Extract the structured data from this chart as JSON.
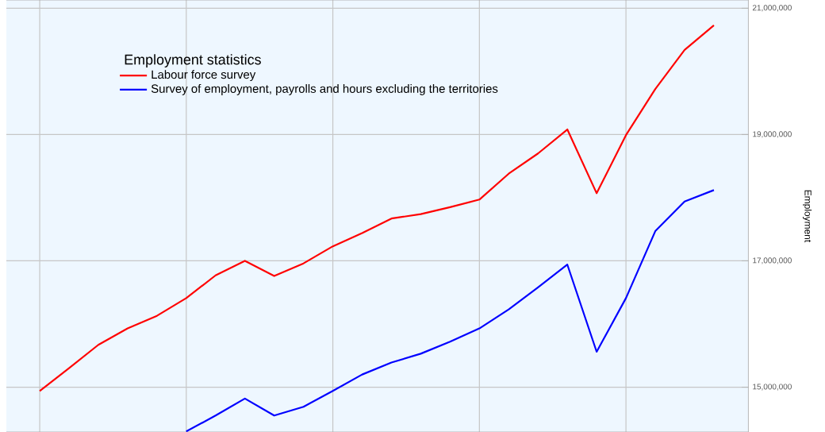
{
  "chart_data": {
    "type": "line",
    "legend_title": "Employment statistics",
    "ylabel": "Employment",
    "categories": [
      null,
      null,
      null,
      null,
      null,
      null,
      null,
      null,
      null,
      null,
      null,
      null,
      null,
      null,
      null,
      null,
      null,
      null,
      null,
      null,
      null,
      null,
      null,
      null
    ],
    "series": [
      {
        "name": "Labour force survey",
        "color": "#ff0000",
        "values": [
          14940000,
          15300000,
          15670000,
          15930000,
          16130000,
          16410000,
          16770000,
          17000000,
          16760000,
          16960000,
          17230000,
          17440000,
          17670000,
          17740000,
          17850000,
          17970000,
          18380000,
          18700000,
          19080000,
          18070000,
          18990000,
          19720000,
          20340000,
          20730000
        ]
      },
      {
        "name": "Survey of employment, payrolls and hours excluding the territories",
        "color": "#0000ff",
        "values": [
          null,
          null,
          null,
          null,
          null,
          14300000,
          14550000,
          14820000,
          14550000,
          14690000,
          14940000,
          15200000,
          15390000,
          15530000,
          15720000,
          15930000,
          16230000,
          16580000,
          16940000,
          15560000,
          16410000,
          17470000,
          17940000,
          18120000
        ]
      }
    ],
    "ylim": [
      14290000,
      21130000
    ],
    "yticks": [
      {
        "value": 15000000,
        "label": "15,000,000"
      },
      {
        "value": 17000000,
        "label": "17,000,000"
      },
      {
        "value": 19000000,
        "label": "19,000,000"
      },
      {
        "value": 21000000,
        "label": "21,000,000"
      }
    ],
    "grid": true,
    "legend": "top left",
    "marker": "none",
    "line_style": "solid"
  }
}
